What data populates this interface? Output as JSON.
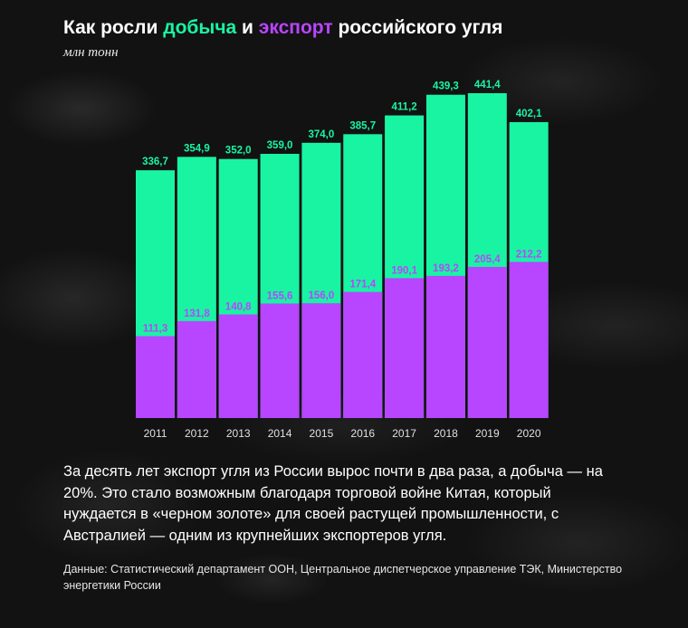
{
  "header": {
    "title_part1": "Как росли ",
    "title_production": "добыча",
    "title_part2": " и ",
    "title_export": "экспорт",
    "title_part3": " российского угля",
    "unit": "млн тонн"
  },
  "colors": {
    "production": "#19f4a3",
    "export": "#b845ff",
    "background": "#121212",
    "text": "#ffffff"
  },
  "chart_data": {
    "type": "bar",
    "layout": "overlapping",
    "categories": [
      "2011",
      "2012",
      "2013",
      "2014",
      "2015",
      "2016",
      "2017",
      "2018",
      "2019",
      "2020"
    ],
    "series": [
      {
        "name": "добыча",
        "values": [
          336.7,
          354.9,
          352.0,
          359.0,
          374.0,
          385.7,
          411.2,
          439.3,
          441.4,
          402.1
        ],
        "labels": [
          "336,7",
          "354,9",
          "352,0",
          "359,0",
          "374,0",
          "385,7",
          "411,2",
          "439,3",
          "441,4",
          "402,1"
        ]
      },
      {
        "name": "экспорт",
        "values": [
          111.3,
          131.8,
          140.8,
          155.6,
          156.0,
          171.4,
          190.1,
          193.2,
          205.4,
          212.2
        ],
        "labels": [
          "111,3",
          "131,8",
          "140,8",
          "155,6",
          "156,0",
          "171,4",
          "190,1",
          "193,2",
          "205,4",
          "212,2"
        ]
      }
    ],
    "ylim": [
      0,
      441.4
    ],
    "grid": false,
    "legend": "in title"
  },
  "description": "За десять лет экспорт угля из России вырос почти в два раза, а добыча — на 20%. Это стало возможным благодаря торговой войне Китая, который нуждается в «черном золоте» для своей растущей промышленности, с Австралией — одним из крупнейших экспортеров угля.",
  "source": "Данные: Статистический департамент ООН, Центральное диспетчерское управление ТЭК, Министерство энергетики России"
}
